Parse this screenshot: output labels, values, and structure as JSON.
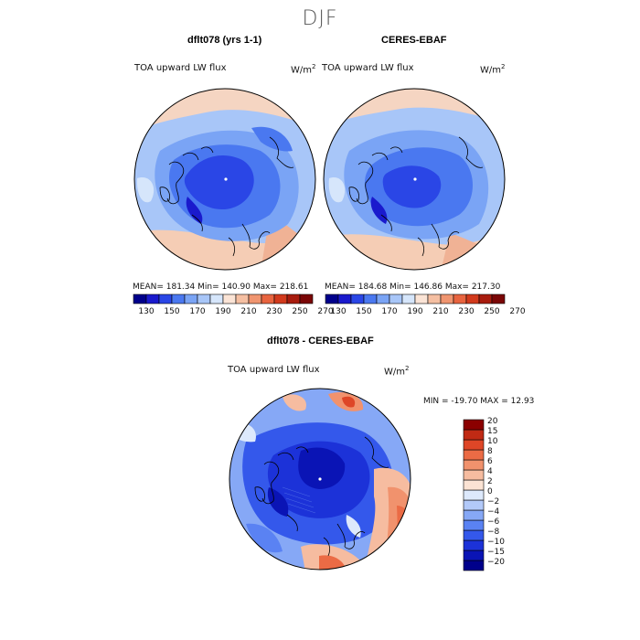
{
  "figure": {
    "season": "DJF"
  },
  "panels": [
    {
      "title": "dflt078 (yrs 1-1)",
      "variable": "TOA upward LW flux",
      "units": "W/m",
      "units_exp": "2",
      "stats": "MEAN= 181.34   Min= 140.90   Max= 218.61"
    },
    {
      "title": "CERES-EBAF",
      "variable": "TOA upward LW flux",
      "units": "W/m",
      "units_exp": "2",
      "stats": "MEAN= 184.68   Min= 146.86   Max= 217.30"
    },
    {
      "title": "dflt078 - CERES-EBAF",
      "variable": "TOA upward LW flux",
      "units": "W/m",
      "units_exp": "2",
      "stats": "MIN = -19.70 MAX =  12.93"
    }
  ],
  "colorbars": {
    "abs": {
      "colors": [
        "#00008b",
        "#1a1acd",
        "#2a46e6",
        "#4a78f0",
        "#7aa4f5",
        "#a8c6f8",
        "#d6e6fb",
        "#fbe4d6",
        "#f5bfa2",
        "#f09570",
        "#e8643f",
        "#d23a1c",
        "#a81c0e",
        "#7a0606"
      ],
      "ticks": [
        "130",
        "150",
        "170",
        "190",
        "210",
        "230",
        "250",
        "270"
      ]
    },
    "diff": {
      "colors": [
        "#00008b",
        "#0a14b5",
        "#1c32d8",
        "#3458eb",
        "#5a82f3",
        "#86a8f6",
        "#b2c9f9",
        "#dde9fc",
        "#fbe3d4",
        "#f6bca0",
        "#f1926d",
        "#eb6b45",
        "#de4627",
        "#c02a14",
        "#8b0000"
      ],
      "ticks": [
        "20",
        "15",
        "10",
        "8",
        "6",
        "4",
        "2",
        "0",
        "−2",
        "−4",
        "−6",
        "−8",
        "−10",
        "−15",
        "−20"
      ]
    }
  }
}
